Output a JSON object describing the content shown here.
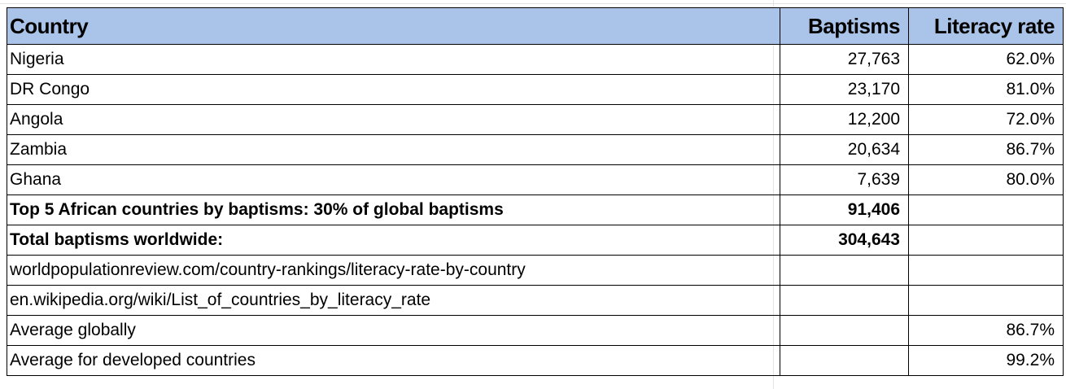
{
  "table": {
    "header": [
      "Country",
      "Baptisms",
      "Literacy rate"
    ],
    "rows": [
      [
        "Nigeria",
        "27,763",
        "62.0%"
      ],
      [
        "DR Congo",
        "23,170",
        "81.0%"
      ],
      [
        "Angola",
        "12,200",
        "72.0%"
      ],
      [
        "Zambia",
        "20,634",
        "86.7%"
      ],
      [
        "Ghana",
        "7,639",
        "80.0%"
      ],
      [
        "Top 5 African countries by baptisms: 30% of global baptisms",
        "91,406",
        null
      ],
      [
        "Total baptisms worldwide:",
        "304,643",
        null
      ],
      [
        "worldpopulationreview.com/country-rankings/literacy-rate-by-country",
        null,
        null
      ],
      [
        "en.wikipedia.org/wiki/List_of_countries_by_literacy_rate",
        null,
        null
      ],
      [
        "Average globally",
        null,
        "86.7%"
      ],
      [
        "Average for developed countries",
        null,
        "99.2%"
      ]
    ]
  }
}
